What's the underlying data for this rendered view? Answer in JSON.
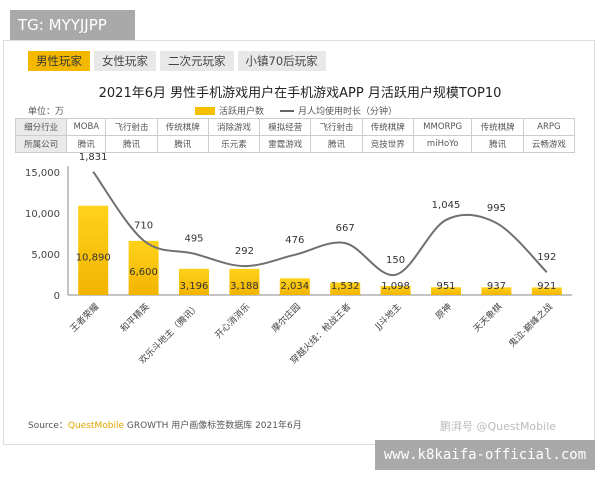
{
  "watermark_top": "TG: MYYJJPP",
  "watermark_bottom": "www.k8kaifa-official.com",
  "tabs": [
    {
      "label": "男性玩家",
      "active": true
    },
    {
      "label": "女性玩家"
    },
    {
      "label": "二次元玩家"
    },
    {
      "label": "小镇70后玩家"
    }
  ],
  "unit": "单位：万",
  "table": {
    "row1_header": "细分行业",
    "row1": [
      "MOBA",
      "飞行射击",
      "传统棋牌",
      "消除游戏",
      "模拟经营",
      "飞行射击",
      "传统棋牌",
      "MMORPG",
      "传统棋牌",
      "ARPG"
    ],
    "row2_header": "所属公司",
    "row2": [
      "腾讯",
      "腾讯",
      "腾讯",
      "乐元素",
      "雷霆游戏",
      "腾讯",
      "竞技世界",
      "miHoYo",
      "腾讯",
      "云畅游戏"
    ]
  },
  "source": {
    "prefix": "Source：",
    "brand": "QuestMobile",
    "rest": "GROWTH 用户画像标签数据库 2021年6月"
  },
  "footer_mark": "鹏湃号 @QuestMobile",
  "colors": {
    "bar": "#f5c000",
    "line": "#707070",
    "active_tab": "#f5b800"
  },
  "chart_data": {
    "type": "bar+line",
    "title": "2021年6月 男性手机游戏用户在手机游戏APP 月活跃用户规模TOP10",
    "categories": [
      "王者荣耀",
      "和平精英",
      "欢乐斗地主（腾讯）",
      "开心消消乐",
      "摩尔庄园",
      "穿越火线：枪战王者",
      "JJ斗地主",
      "原神",
      "天天象棋",
      "鬼泣-巅峰之战"
    ],
    "series": [
      {
        "name": "活跃用户数",
        "type": "bar",
        "values": [
          10890,
          6600,
          3196,
          3188,
          2034,
          1532,
          1098,
          951,
          937,
          921
        ],
        "labels": [
          "10,890",
          "6,600",
          "3,196",
          "3,188",
          "2,034",
          "1,532",
          "1,098",
          "951",
          "937",
          "921"
        ]
      },
      {
        "name": "月人均使用时长（分钟）",
        "type": "line",
        "values": [
          1831,
          710,
          495,
          292,
          476,
          667,
          150,
          1045,
          995,
          192
        ],
        "labels": [
          "1,831",
          "710",
          "495",
          "292",
          "476",
          "667",
          "150",
          "1,045",
          "995",
          "192"
        ]
      }
    ],
    "ylim": [
      0,
      15000
    ],
    "yticks": [
      "0",
      "5,000",
      "10,000",
      "15,000"
    ],
    "yticks_values": [
      0,
      5000,
      10000,
      15000
    ],
    "grid": false,
    "legend": "top"
  }
}
